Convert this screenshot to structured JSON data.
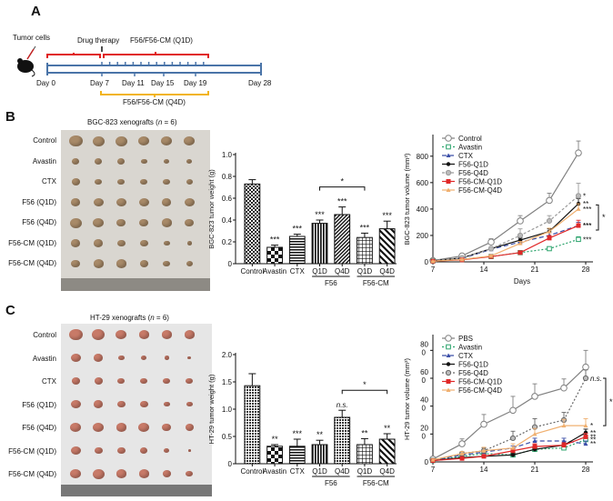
{
  "panels": {
    "A": {
      "letter": "A",
      "tumor_cells_label": "Tumor cells",
      "drug_therapy_label": "Drug therapy",
      "q1d_label": "F56/F56-CM (Q1D)",
      "q4d_label": "F56/F56-CM (Q4D)",
      "day_labels": [
        "Day 0",
        "Day 7",
        "Day 11",
        "Day 15",
        "Day 19",
        "Day 28"
      ],
      "colors": {
        "q1d": "#e02020",
        "timeline": "#4a74a8",
        "q4d": "#f2b418"
      }
    },
    "B": {
      "letter": "B",
      "photo_title_prefix": "BGC-823 xenografts (",
      "photo_title_n": "n",
      "photo_title_suffix": " = 6)",
      "row_labels": [
        "Control",
        "Avastin",
        "CTX",
        "F56 (Q1D)",
        "F56 (Q4D)",
        "F56-CM (Q1D)",
        "F56-CM (Q4D)"
      ]
    },
    "C": {
      "letter": "C",
      "photo_title_prefix": "HT-29 xenografts (",
      "photo_title_n": "n",
      "photo_title_suffix": " = 6)",
      "row_labels": [
        "Control",
        "Avastin",
        "CTX",
        "F56 (Q1D)",
        "F56 (Q4D)",
        "F56-CM (Q1D)",
        "F56-CM (Q4D)"
      ]
    }
  },
  "chart_data": [
    {
      "id": "B-bar",
      "type": "bar",
      "ylabel": "BGC-823 tumor weight (g)",
      "ylim": [
        0,
        1.0
      ],
      "yticks": [
        "0",
        "0.2",
        "0.4",
        "0.6",
        "0.8",
        "1.0"
      ],
      "ytick_values": [
        0,
        0.2,
        0.4,
        0.6,
        0.8,
        1.0
      ],
      "categories": [
        "Control",
        "Avastin",
        "CTX",
        "Q1D",
        "Q4D",
        "Q1D",
        "Q4D"
      ],
      "values": [
        0.73,
        0.15,
        0.25,
        0.37,
        0.45,
        0.24,
        0.32
      ],
      "errors": [
        0.04,
        0.02,
        0.02,
        0.03,
        0.07,
        0.04,
        0.07
      ],
      "significance": [
        "",
        "***",
        "***",
        "***",
        "***",
        "***",
        "***"
      ],
      "patterns": [
        "dots",
        "checker",
        "hlines",
        "vlines",
        "diag",
        "grid",
        "diagwide"
      ],
      "groups": [
        {
          "label": "F56",
          "from": 3,
          "to": 4
        },
        {
          "label": "F56-CM",
          "from": 5,
          "to": 6
        }
      ],
      "bracket": {
        "from": 3,
        "to": 5,
        "label": "*"
      }
    },
    {
      "id": "B-line",
      "type": "line",
      "ylabel": "BGC-823 tumor volume (mm3)",
      "xlabel": "Days",
      "xlim": [
        7,
        29
      ],
      "ylim": [
        0,
        950
      ],
      "xticks": [
        7,
        14,
        21,
        28
      ],
      "yticks": [
        0,
        200,
        400,
        600,
        800
      ],
      "x": [
        7,
        11,
        15,
        19,
        23,
        27
      ],
      "series": [
        {
          "name": "Control",
          "color": "#808080",
          "dash": "",
          "marker": "circle-open",
          "values": [
            10,
            45,
            150,
            310,
            465,
            825
          ],
          "errors": [
            5,
            10,
            25,
            40,
            55,
            90
          ],
          "sig": ""
        },
        {
          "name": "Avastin",
          "color": "#2aa36b",
          "dash": "2,2",
          "marker": "square-open",
          "values": [
            8,
            20,
            40,
            70,
            100,
            170
          ],
          "errors": [
            3,
            5,
            8,
            10,
            12,
            20
          ],
          "sig": "***"
        },
        {
          "name": "CTX",
          "color": "#3b4ea8",
          "dash": "5,3",
          "marker": "triangle",
          "values": [
            8,
            25,
            95,
            150,
            200,
            275
          ],
          "errors": [
            3,
            5,
            10,
            15,
            20,
            25
          ],
          "sig": "***"
        },
        {
          "name": "F56-Q1D",
          "color": "#111111",
          "dash": "",
          "marker": "dot",
          "values": [
            8,
            30,
            100,
            165,
            230,
            440
          ],
          "errors": [
            3,
            5,
            10,
            15,
            20,
            40
          ],
          "sig": "**"
        },
        {
          "name": "F56-Q4D",
          "color": "#9a9a9a",
          "dash": "3,2",
          "marker": "circle-gray",
          "values": [
            8,
            30,
            100,
            200,
            310,
            500
          ],
          "errors": [
            3,
            6,
            15,
            50,
            40,
            95
          ],
          "sig": "*"
        },
        {
          "name": "F56-CM-Q1D",
          "color": "#e02828",
          "dash": "",
          "marker": "square",
          "values": [
            5,
            15,
            40,
            70,
            180,
            275
          ],
          "errors": [
            2,
            3,
            5,
            8,
            20,
            40
          ],
          "sig": "***"
        },
        {
          "name": "F56-CM-Q4D",
          "color": "#f0b070",
          "dash": "",
          "marker": "triangle-up",
          "values": [
            5,
            18,
            45,
            140,
            230,
            400
          ],
          "errors": [
            2,
            4,
            6,
            15,
            25,
            40
          ],
          "sig": "***"
        }
      ],
      "bracket_label": "*",
      "legend": "top-left"
    },
    {
      "id": "C-bar",
      "type": "bar",
      "ylabel": "HT-29 tumor weight (g)",
      "ylim": [
        0,
        2.0
      ],
      "yticks": [
        "0",
        "0.5",
        "1.0",
        "1.5",
        "2.0"
      ],
      "ytick_values": [
        0,
        0.5,
        1.0,
        1.5,
        2.0
      ],
      "categories": [
        "Control",
        "Avastin",
        "CTX",
        "Q1D",
        "Q4D",
        "Q1D",
        "Q4D"
      ],
      "values": [
        1.43,
        0.32,
        0.32,
        0.35,
        0.85,
        0.35,
        0.45
      ],
      "errors": [
        0.22,
        0.03,
        0.13,
        0.08,
        0.13,
        0.11,
        0.1
      ],
      "significance": [
        "",
        "**",
        "***",
        "**",
        "n.s.",
        "**",
        "**"
      ],
      "patterns": [
        "dense",
        "checker",
        "hlines",
        "vlines",
        "dense",
        "grid",
        "diagwide"
      ],
      "groups": [
        {
          "label": "F56",
          "from": 3,
          "to": 4
        },
        {
          "label": "F56-CM",
          "from": 5,
          "to": 6
        }
      ],
      "bracket": {
        "from": 4,
        "to": 6,
        "label": "*"
      }
    },
    {
      "id": "C-line",
      "type": "line",
      "ylabel": "HT-29 tumor volume (mm3)",
      "xlabel": "",
      "xlim": [
        7,
        29
      ],
      "ylim": [
        0,
        900
      ],
      "xticks": [
        7,
        14,
        21,
        28
      ],
      "yticks": [
        0,
        200,
        400,
        600,
        800
      ],
      "ytick_labels": [
        "0",
        "20\n0",
        "40\n0",
        "60\n0",
        "80\n0"
      ],
      "x": [
        7,
        11,
        14,
        18,
        21,
        25,
        28
      ],
      "series": [
        {
          "name": "PBS",
          "color": "#808080",
          "dash": "",
          "marker": "circle-open",
          "values": [
            20,
            130,
            270,
            370,
            470,
            530,
            680
          ],
          "errors": [
            8,
            35,
            70,
            100,
            90,
            65,
            120
          ],
          "sig": ""
        },
        {
          "name": "Avastin",
          "color": "#2aa36b",
          "dash": "2,2",
          "marker": "square-open",
          "values": [
            10,
            40,
            60,
            50,
            90,
            100,
            160
          ],
          "errors": [
            4,
            8,
            10,
            10,
            12,
            15,
            20
          ],
          "sig": "**"
        },
        {
          "name": "CTX",
          "color": "#3b4ea8",
          "dash": "5,3",
          "marker": "triangle",
          "values": [
            10,
            50,
            70,
            100,
            150,
            150,
            130
          ],
          "errors": [
            4,
            10,
            12,
            15,
            20,
            20,
            20
          ],
          "sig": "**"
        },
        {
          "name": "F56-Q1D",
          "color": "#111111",
          "dash": "",
          "marker": "dot",
          "values": [
            10,
            30,
            40,
            50,
            90,
            120,
            210
          ],
          "errors": [
            4,
            6,
            8,
            10,
            12,
            15,
            25
          ],
          "sig": "**"
        },
        {
          "name": "F56-Q4D",
          "color": "#666666",
          "dash": "2,2",
          "marker": "circle-gray",
          "values": [
            10,
            60,
            80,
            170,
            250,
            300,
            600
          ],
          "errors": [
            4,
            12,
            20,
            50,
            60,
            55,
            60
          ],
          "sig": "n.s."
        },
        {
          "name": "F56-CM-Q1D",
          "color": "#e02828",
          "dash": "",
          "marker": "square",
          "values": [
            10,
            25,
            40,
            80,
            110,
            120,
            180
          ],
          "errors": [
            4,
            6,
            8,
            15,
            20,
            18,
            25
          ],
          "sig": "**"
        },
        {
          "name": "F56-CM-Q4D",
          "color": "#f0b070",
          "dash": "",
          "marker": "triangle-up",
          "values": [
            15,
            60,
            80,
            100,
            200,
            260,
            260
          ],
          "errors": [
            5,
            15,
            25,
            30,
            40,
            45,
            50
          ],
          "sig": "*"
        }
      ],
      "bracket_label": "*",
      "legend": "top-left"
    }
  ]
}
